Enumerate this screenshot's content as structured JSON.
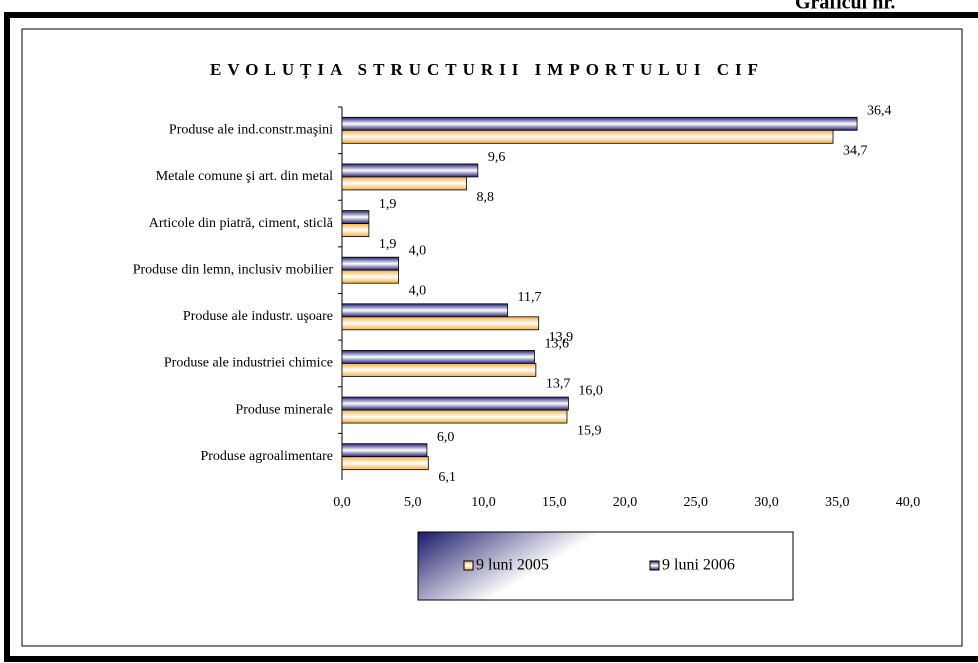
{
  "page_label": "Graficul nr.",
  "chart_data": {
    "type": "hbar",
    "title": "EVOLUȚIA STRUCTURII IMPORTULUI CIF",
    "categories": [
      "Produse ale ind.constr.maşini",
      "Metale comune şi art. din metal",
      "Articole din piatră, ciment, sticlă",
      "Produse din lemn, inclusiv mobilier",
      "Produse ale industr. uşoare",
      "Produse ale industriei chimice",
      "Produse minerale",
      "Produse agroalimentare"
    ],
    "series": [
      {
        "name": "9 luni 2006",
        "color": "#1f1f78",
        "values": [
          36.4,
          9.6,
          1.9,
          4.0,
          11.7,
          13.6,
          16.0,
          6.0
        ],
        "value_labels": [
          "36,4",
          "9,6",
          "1,9",
          "4,0",
          "11,7",
          "13,6",
          "16,0",
          "6,0"
        ]
      },
      {
        "name": "9 luni 2005",
        "color": "#f5b041",
        "values": [
          34.7,
          8.8,
          1.9,
          4.0,
          13.9,
          13.7,
          15.9,
          6.1
        ],
        "value_labels": [
          "34,7",
          "8,8",
          "1,9",
          "4,0",
          "13,9",
          "13,7",
          "15,9",
          "6,1"
        ]
      }
    ],
    "xlim": [
      0,
      40
    ],
    "xticks": [
      {
        "value": 0,
        "label": "0,0"
      },
      {
        "value": 5,
        "label": "5,0"
      },
      {
        "value": 10,
        "label": "10,0"
      },
      {
        "value": 15,
        "label": "15,0"
      },
      {
        "value": 20,
        "label": "20,0"
      },
      {
        "value": 25,
        "label": "25,0"
      },
      {
        "value": 30,
        "label": "30,0"
      },
      {
        "value": 35,
        "label": "35,0"
      },
      {
        "value": 40,
        "label": "40,0"
      }
    ],
    "grid": false
  }
}
